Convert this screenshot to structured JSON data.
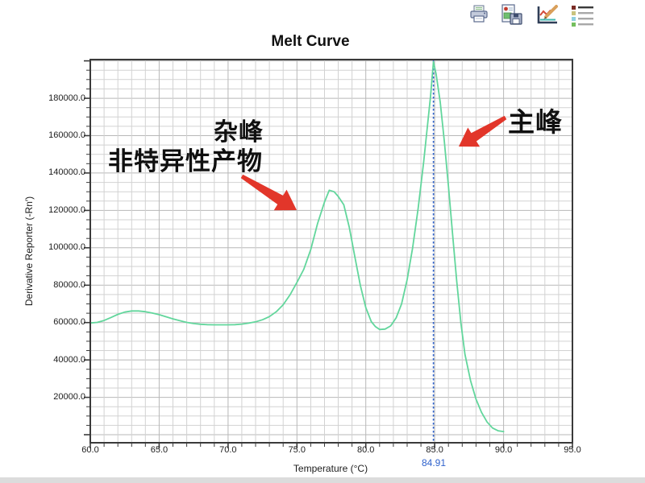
{
  "toolbar": {
    "icons": [
      {
        "name": "print-icon",
        "label": "Print"
      },
      {
        "name": "save-report-icon",
        "label": "Save Report"
      },
      {
        "name": "edit-plot-icon",
        "label": "Edit Plot"
      },
      {
        "name": "legend-icon",
        "label": "Legend"
      }
    ]
  },
  "chart_data": {
    "type": "line",
    "title": "Melt Curve",
    "xlabel": "Temperature (°C)",
    "ylabel": "Derivative Reporter (-Rn′)",
    "xlim": [
      60,
      95
    ],
    "ylim_draw": [
      -4300,
      200700
    ],
    "grid": true,
    "x_ticks": [
      60,
      65,
      70,
      75,
      80,
      85,
      90,
      95
    ],
    "x_tick_labels": [
      "60.0",
      "65.0",
      "70.0",
      "75.0",
      "80.0",
      "85.0",
      "90.0",
      "95.0"
    ],
    "y_ticks": [
      20000,
      40000,
      60000,
      80000,
      100000,
      120000,
      140000,
      160000,
      180000
    ],
    "y_tick_labels": [
      "20000.0",
      "40000.0",
      "60000.0",
      "80000.0",
      "100000.0",
      "120000.0",
      "140000.0",
      "160000.0",
      "180000.0"
    ],
    "series": [
      {
        "name": "melt-derivative",
        "color": "#62d69c",
        "points": [
          [
            60.0,
            59800
          ],
          [
            60.5,
            60100
          ],
          [
            61.0,
            61100
          ],
          [
            61.5,
            62700
          ],
          [
            62.0,
            64400
          ],
          [
            62.5,
            65600
          ],
          [
            63.0,
            66200
          ],
          [
            63.5,
            66200
          ],
          [
            64.0,
            65800
          ],
          [
            64.5,
            65100
          ],
          [
            65.0,
            64200
          ],
          [
            65.5,
            63100
          ],
          [
            66.0,
            62000
          ],
          [
            66.5,
            61000
          ],
          [
            67.0,
            60100
          ],
          [
            67.5,
            59500
          ],
          [
            68.0,
            59100
          ],
          [
            68.5,
            58900
          ],
          [
            69.0,
            58800
          ],
          [
            69.5,
            58800
          ],
          [
            70.0,
            58800
          ],
          [
            70.5,
            58900
          ],
          [
            71.0,
            59200
          ],
          [
            71.5,
            59700
          ],
          [
            72.0,
            60400
          ],
          [
            72.5,
            61500
          ],
          [
            73.0,
            63200
          ],
          [
            73.5,
            65800
          ],
          [
            74.0,
            69500
          ],
          [
            74.5,
            74800
          ],
          [
            75.0,
            81500
          ],
          [
            75.5,
            88500
          ],
          [
            76.0,
            99000
          ],
          [
            76.5,
            113000
          ],
          [
            77.0,
            124500
          ],
          [
            77.35,
            130800
          ],
          [
            77.7,
            130000
          ],
          [
            78.0,
            127500
          ],
          [
            78.4,
            123000
          ],
          [
            78.8,
            111000
          ],
          [
            79.2,
            95500
          ],
          [
            79.6,
            80000
          ],
          [
            80.0,
            68000
          ],
          [
            80.4,
            60500
          ],
          [
            80.7,
            57800
          ],
          [
            81.0,
            56300
          ],
          [
            81.4,
            56500
          ],
          [
            81.8,
            58200
          ],
          [
            82.2,
            62500
          ],
          [
            82.6,
            70000
          ],
          [
            83.0,
            83000
          ],
          [
            83.4,
            100000
          ],
          [
            83.8,
            121000
          ],
          [
            84.2,
            146000
          ],
          [
            84.5,
            167000
          ],
          [
            84.7,
            181000
          ],
          [
            84.91,
            199500
          ],
          [
            85.1,
            193000
          ],
          [
            85.4,
            178000
          ],
          [
            85.7,
            157000
          ],
          [
            86.0,
            133000
          ],
          [
            86.3,
            107000
          ],
          [
            86.6,
            82000
          ],
          [
            86.9,
            60000
          ],
          [
            87.2,
            43000
          ],
          [
            87.6,
            29000
          ],
          [
            88.0,
            19000
          ],
          [
            88.4,
            12000
          ],
          [
            88.8,
            6800
          ],
          [
            89.2,
            3600
          ],
          [
            89.6,
            2100
          ],
          [
            90.0,
            1700
          ]
        ]
      }
    ],
    "marker": {
      "x": 84.91,
      "label": "84.91",
      "color": "#2f62cc"
    },
    "annotations": [
      {
        "id": "noise-peak-line1",
        "text": "杂峰"
      },
      {
        "id": "noise-peak-line2",
        "text": "非特异性产物"
      },
      {
        "id": "main-peak",
        "text": "主峰"
      }
    ],
    "annotation_arrow_color": "#e2362a"
  }
}
